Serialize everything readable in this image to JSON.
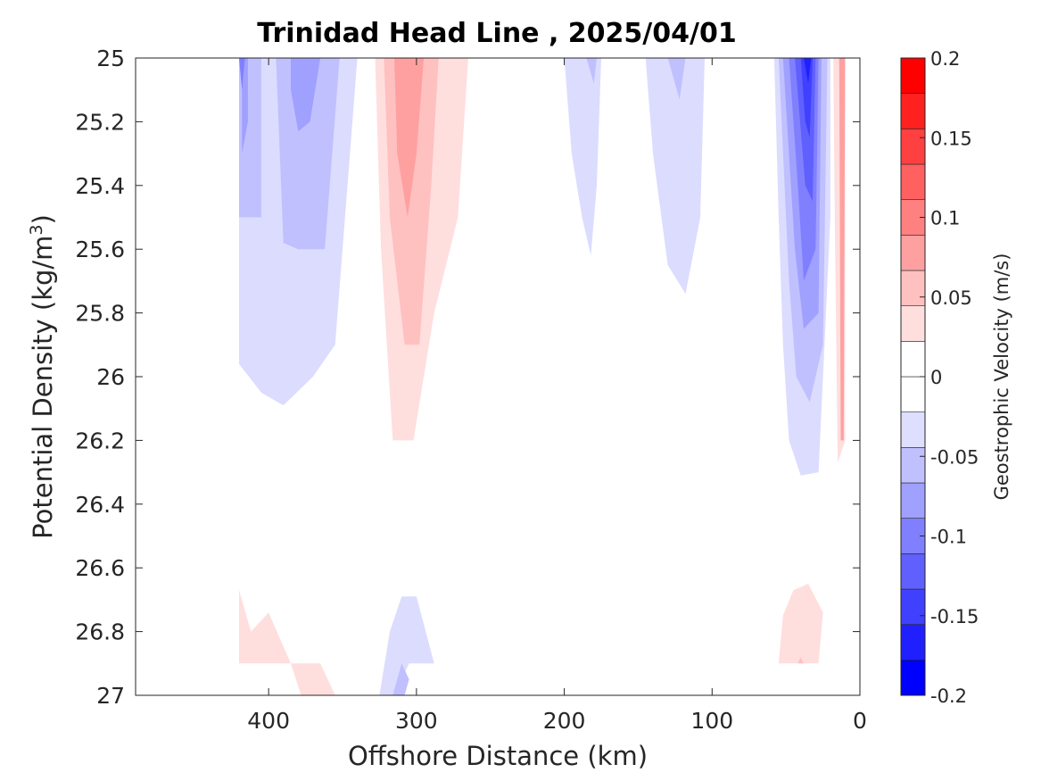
{
  "chart_data": {
    "type": "heatmap",
    "subtype": "filled-contour",
    "title": "Trinidad Head Line , 2025/04/01",
    "xlabel": "Offshore Distance (km)",
    "ylabel_main": "Potential Density (kg/m",
    "ylabel_sup": "3",
    "ylabel_end": ")",
    "xlim": [
      490,
      0
    ],
    "x_reversed": true,
    "ylim": [
      25,
      27
    ],
    "y_reversed": true,
    "x_ticks": [
      400,
      300,
      200,
      100,
      0
    ],
    "x_tick_labels": [
      "400",
      "300",
      "200",
      "100",
      "0"
    ],
    "y_ticks": [
      25,
      25.2,
      25.4,
      25.6,
      25.8,
      26,
      26.2,
      26.4,
      26.6,
      26.8,
      27
    ],
    "y_tick_labels": [
      "25",
      "25.2",
      "25.4",
      "25.6",
      "25.8",
      "26",
      "26.2",
      "26.4",
      "26.6",
      "26.8",
      "27"
    ],
    "grid": false,
    "colorbar": {
      "label": "Geostrophic Velocity (m/s)",
      "range": [
        -0.2,
        0.2
      ],
      "levels": [
        -0.2,
        -0.175,
        -0.15,
        -0.125,
        -0.1,
        -0.075,
        -0.05,
        -0.025,
        0,
        0.025,
        0.05,
        0.075,
        0.1,
        0.125,
        0.15,
        0.175,
        0.2
      ],
      "tick_values": [
        -0.2,
        -0.15,
        -0.1,
        -0.05,
        0,
        0.05,
        0.1,
        0.15,
        0.2
      ],
      "tick_labels": [
        "-0.2",
        "-0.15",
        "-0.1",
        "-0.05",
        "0",
        "0.05",
        "0.1",
        "0.15",
        "0.2"
      ],
      "colors": [
        "#0000ff",
        "#2020ff",
        "#4040ff",
        "#6060ff",
        "#8080ff",
        "#a0a0ff",
        "#c0c0ff",
        "#dedeff",
        "#ffffff",
        "#ffffff",
        "#ffdede",
        "#ffc0c0",
        "#ffa0a0",
        "#ff8080",
        "#ff6060",
        "#ff4040",
        "#ff2020",
        "#ff0000"
      ]
    },
    "regions": [
      {
        "level": -0.025,
        "color": "#dcdcff",
        "points": [
          [
            420,
            25
          ],
          [
            340,
            25
          ],
          [
            355,
            25.9
          ],
          [
            370,
            26.0
          ],
          [
            390,
            26.09
          ],
          [
            405,
            26.05
          ],
          [
            420,
            25.96
          ]
        ]
      },
      {
        "level": -0.05,
        "color": "#c0c0ff",
        "points": [
          [
            420,
            25
          ],
          [
            405,
            25
          ],
          [
            405,
            25.5
          ],
          [
            420,
            25.5
          ]
        ]
      },
      {
        "level": -0.05,
        "color": "#c0c0ff",
        "points": [
          [
            395,
            25
          ],
          [
            352,
            25
          ],
          [
            362,
            25.6
          ],
          [
            380,
            25.6
          ],
          [
            390,
            25.58
          ]
        ]
      },
      {
        "level": -0.075,
        "color": "#a0a0ff",
        "points": [
          [
            418,
            25
          ],
          [
            414,
            25
          ],
          [
            414,
            25.2
          ],
          [
            418,
            25.3
          ]
        ]
      },
      {
        "level": -0.075,
        "color": "#a0a0ff",
        "points": [
          [
            385,
            25
          ],
          [
            365,
            25
          ],
          [
            372,
            25.2
          ],
          [
            380,
            25.23
          ],
          [
            385,
            25.1
          ]
        ]
      },
      {
        "level": -0.1,
        "color": "#8080ff",
        "points": [
          [
            420,
            25
          ],
          [
            416,
            25
          ],
          [
            418,
            25.1
          ]
        ]
      },
      {
        "level": 0.025,
        "color": "#ffdede",
        "points": [
          [
            328,
            25
          ],
          [
            265,
            25
          ],
          [
            272,
            25.5
          ],
          [
            288,
            25.8
          ],
          [
            302,
            26.2
          ],
          [
            316,
            26.2
          ],
          [
            324,
            25.6
          ]
        ]
      },
      {
        "level": 0.05,
        "color": "#ffc0c0",
        "points": [
          [
            322,
            25
          ],
          [
            285,
            25
          ],
          [
            290,
            25.4
          ],
          [
            298,
            25.9
          ],
          [
            308,
            25.9
          ],
          [
            318,
            25.5
          ]
        ]
      },
      {
        "level": 0.075,
        "color": "#ffa0a0",
        "points": [
          [
            315,
            25
          ],
          [
            295,
            25
          ],
          [
            300,
            25.3
          ],
          [
            306,
            25.5
          ],
          [
            313,
            25.3
          ]
        ]
      },
      {
        "level": -0.025,
        "color": "#dcdcff",
        "points": [
          [
            200,
            25
          ],
          [
            175,
            25
          ],
          [
            178,
            25.4
          ],
          [
            182,
            25.62
          ],
          [
            188,
            25.5
          ],
          [
            195,
            25.3
          ]
        ]
      },
      {
        "level": -0.05,
        "color": "#c0c0ff",
        "points": [
          [
            185,
            25
          ],
          [
            178,
            25
          ],
          [
            180,
            25.08
          ]
        ]
      },
      {
        "level": -0.025,
        "color": "#dcdcff",
        "points": [
          [
            145,
            25
          ],
          [
            105,
            25
          ],
          [
            108,
            25.5
          ],
          [
            118,
            25.74
          ],
          [
            130,
            25.65
          ],
          [
            140,
            25.3
          ]
        ]
      },
      {
        "level": -0.05,
        "color": "#c0c0ff",
        "points": [
          [
            130,
            25
          ],
          [
            118,
            25
          ],
          [
            122,
            25.13
          ]
        ]
      },
      {
        "level": -0.025,
        "color": "#dcdcff",
        "points": [
          [
            58,
            25
          ],
          [
            20,
            25
          ],
          [
            20,
            25.5
          ],
          [
            25,
            26.0
          ],
          [
            28,
            26.3
          ],
          [
            40,
            26.31
          ],
          [
            48,
            26.2
          ],
          [
            52,
            25.9
          ],
          [
            55,
            25.5
          ]
        ]
      },
      {
        "level": -0.05,
        "color": "#c0c0ff",
        "points": [
          [
            55,
            25
          ],
          [
            22,
            25
          ],
          [
            25,
            25.9
          ],
          [
            34,
            26.08
          ],
          [
            43,
            26.0
          ],
          [
            48,
            25.7
          ]
        ]
      },
      {
        "level": -0.075,
        "color": "#a0a0ff",
        "points": [
          [
            52,
            25
          ],
          [
            26,
            25
          ],
          [
            28,
            25.8
          ],
          [
            38,
            25.85
          ],
          [
            44,
            25.6
          ]
        ]
      },
      {
        "level": -0.1,
        "color": "#8080ff",
        "points": [
          [
            48,
            25
          ],
          [
            28,
            25
          ],
          [
            30,
            25.6
          ],
          [
            38,
            25.7
          ],
          [
            42,
            25.4
          ]
        ]
      },
      {
        "level": -0.125,
        "color": "#6060ff",
        "points": [
          [
            44,
            25
          ],
          [
            30,
            25
          ],
          [
            32,
            25.45
          ],
          [
            37,
            25.4
          ]
        ]
      },
      {
        "level": -0.15,
        "color": "#4040ff",
        "points": [
          [
            40,
            25
          ],
          [
            32,
            25
          ],
          [
            34,
            25.25
          ],
          [
            37,
            25.2
          ]
        ]
      },
      {
        "level": -0.175,
        "color": "#2020ff",
        "points": [
          [
            38,
            25
          ],
          [
            33,
            25
          ],
          [
            35,
            25.08
          ]
        ]
      },
      {
        "level": 0.025,
        "color": "#ffdede",
        "points": [
          [
            18,
            25
          ],
          [
            10,
            25
          ],
          [
            10,
            26.2
          ],
          [
            15,
            26.27
          ],
          [
            17,
            25.5
          ]
        ]
      },
      {
        "level": 0.075,
        "color": "#ffa0a0",
        "points": [
          [
            14,
            25
          ],
          [
            10,
            25
          ],
          [
            11,
            26.2
          ],
          [
            13,
            26.2
          ]
        ]
      },
      {
        "level": 0.025,
        "color": "#ffdede",
        "points": [
          [
            420,
            26.67
          ],
          [
            420,
            26.9
          ],
          [
            365,
            26.9
          ],
          [
            355,
            27
          ],
          [
            378,
            27
          ],
          [
            385,
            26.9
          ],
          [
            400,
            26.74
          ],
          [
            412,
            26.8
          ]
        ]
      },
      {
        "level": -0.025,
        "color": "#dcdcff",
        "points": [
          [
            325,
            27
          ],
          [
            318,
            26.8
          ],
          [
            310,
            26.69
          ],
          [
            300,
            26.69
          ],
          [
            288,
            26.9
          ],
          [
            305,
            26.9
          ],
          [
            315,
            27
          ]
        ]
      },
      {
        "level": -0.05,
        "color": "#c0c0ff",
        "points": [
          [
            316,
            27
          ],
          [
            310,
            26.9
          ],
          [
            305,
            26.95
          ],
          [
            308,
            27
          ]
        ]
      },
      {
        "level": 0.025,
        "color": "#ffdede",
        "points": [
          [
            55,
            26.9
          ],
          [
            52,
            26.75
          ],
          [
            45,
            26.67
          ],
          [
            35,
            26.65
          ],
          [
            25,
            26.74
          ],
          [
            28,
            26.9
          ]
        ]
      },
      {
        "level": 0.05,
        "color": "#ffc0c0",
        "points": [
          [
            42,
            26.9
          ],
          [
            40,
            26.88
          ],
          [
            38,
            26.9
          ]
        ]
      }
    ]
  }
}
